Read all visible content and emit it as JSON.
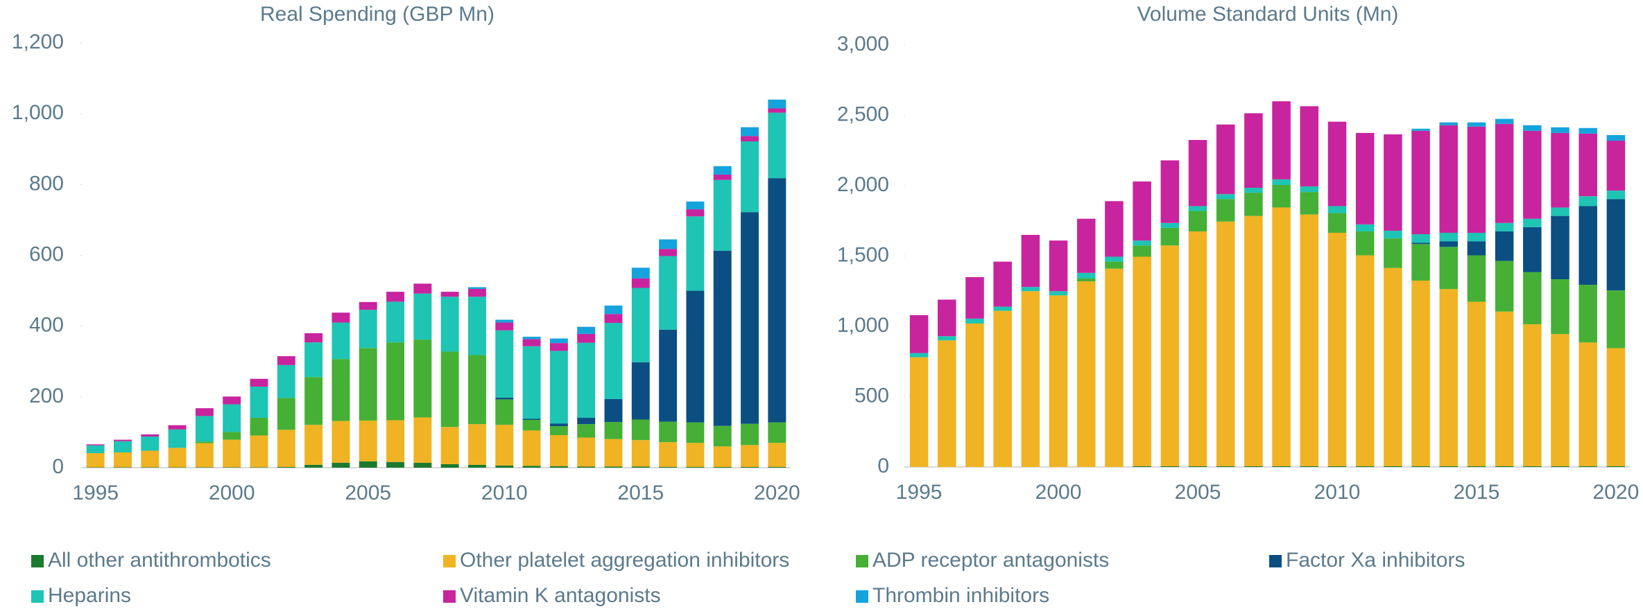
{
  "legend": [
    {
      "name": "All other antithrombotics",
      "color": "#1a7a2e"
    },
    {
      "name": "Other platelet aggregation inhibitors",
      "color": "#f0b323"
    },
    {
      "name": "ADP receptor antagonists",
      "color": "#45b035"
    },
    {
      "name": "Factor Xa inhibitors",
      "color": "#0b4f82"
    },
    {
      "name": "Heparins",
      "color": "#1ec4b4"
    },
    {
      "name": "Vitamin K antagonists",
      "color": "#c8249e"
    },
    {
      "name": "Thrombin inhibitors",
      "color": "#15a3dd"
    }
  ],
  "chart_data": [
    {
      "type": "stacked_bar",
      "title": "Real Spending (GBP Mn)",
      "categories": [
        1995,
        null,
        null,
        null,
        null,
        2000,
        null,
        null,
        null,
        null,
        2005,
        null,
        null,
        null,
        null,
        2010,
        null,
        null,
        null,
        null,
        2015,
        null,
        null,
        null,
        null,
        2020
      ],
      "ylim": [
        0,
        1200
      ],
      "yticks": [
        0,
        200,
        400,
        600,
        800,
        {
          "value": 1000,
          "label": "1,000"
        },
        {
          "value": 1200,
          "label": "1,200"
        }
      ],
      "series": [
        {
          "values": [
            1,
            1,
            1,
            1,
            1,
            1,
            1,
            2,
            8,
            14,
            18,
            16,
            14,
            10,
            8,
            6,
            5,
            4,
            3,
            3,
            3,
            2,
            2,
            2,
            2,
            2
          ]
        },
        {
          "values": [
            40,
            42,
            47,
            55,
            68,
            78,
            90,
            105,
            113,
            118,
            115,
            118,
            128,
            105,
            115,
            115,
            100,
            88,
            82,
            78,
            75,
            70,
            68,
            58,
            62,
            68
          ]
        },
        {
          "values": [
            0,
            0,
            0,
            0,
            5,
            22,
            50,
            90,
            135,
            175,
            205,
            220,
            220,
            213,
            195,
            72,
            30,
            25,
            38,
            48,
            58,
            58,
            58,
            58,
            60,
            58
          ]
        },
        {
          "values": [
            0,
            0,
            0,
            0,
            0,
            0,
            0,
            0,
            0,
            0,
            0,
            0,
            0,
            0,
            0,
            5,
            3,
            8,
            18,
            65,
            162,
            260,
            372,
            495,
            598,
            690
          ]
        },
        {
          "values": [
            22,
            32,
            40,
            52,
            72,
            78,
            88,
            93,
            98,
            103,
            108,
            115,
            130,
            155,
            165,
            190,
            205,
            205,
            212,
            215,
            210,
            208,
            210,
            200,
            200,
            185
          ]
        },
        {
          "values": [
            3,
            4,
            6,
            12,
            22,
            22,
            22,
            25,
            26,
            28,
            22,
            28,
            28,
            14,
            22,
            22,
            20,
            22,
            25,
            25,
            27,
            20,
            20,
            15,
            15,
            12
          ]
        },
        {
          "values": [
            0,
            0,
            0,
            0,
            0,
            0,
            0,
            0,
            0,
            0,
            0,
            0,
            0,
            0,
            5,
            8,
            7,
            13,
            20,
            24,
            30,
            27,
            22,
            24,
            25,
            25
          ]
        }
      ]
    },
    {
      "type": "stacked_bar",
      "title": "Volume Standard Units (Mn)",
      "categories": [
        1995,
        null,
        null,
        null,
        null,
        2000,
        null,
        null,
        null,
        null,
        2005,
        null,
        null,
        null,
        null,
        2010,
        null,
        null,
        null,
        null,
        2015,
        null,
        null,
        null,
        null,
        2020
      ],
      "ylim": [
        0,
        3000
      ],
      "yticks": [
        0,
        500,
        {
          "value": 1000,
          "label": "1,000"
        },
        {
          "value": 1500,
          "label": "1,500"
        },
        {
          "value": 2000,
          "label": "2,000"
        },
        {
          "value": 2500,
          "label": "2,500"
        },
        {
          "value": 3000,
          "label": "3,000"
        }
      ],
      "series": [
        {
          "values": [
            0,
            0,
            0,
            0,
            0,
            0,
            0,
            0,
            5,
            5,
            5,
            5,
            5,
            5,
            5,
            5,
            5,
            5,
            5,
            5,
            5,
            5,
            5,
            5,
            5,
            5
          ]
        },
        {
          "values": [
            780,
            900,
            1020,
            1110,
            1250,
            1220,
            1320,
            1410,
            1490,
            1570,
            1670,
            1740,
            1780,
            1840,
            1790,
            1660,
            1500,
            1410,
            1320,
            1260,
            1170,
            1100,
            1010,
            940,
            880,
            840
          ]
        },
        {
          "values": [
            0,
            0,
            0,
            0,
            0,
            0,
            20,
            50,
            80,
            125,
            145,
            160,
            165,
            160,
            160,
            140,
            170,
            210,
            260,
            300,
            330,
            360,
            370,
            390,
            410,
            410
          ]
        },
        {
          "values": [
            0,
            0,
            0,
            0,
            0,
            0,
            0,
            0,
            0,
            0,
            0,
            0,
            0,
            0,
            0,
            0,
            0,
            0,
            10,
            40,
            100,
            210,
            320,
            450,
            560,
            650
          ]
        },
        {
          "values": [
            30,
            30,
            35,
            30,
            30,
            30,
            40,
            35,
            35,
            35,
            35,
            35,
            35,
            40,
            40,
            50,
            50,
            55,
            60,
            60,
            60,
            60,
            60,
            60,
            70,
            60
          ]
        },
        {
          "values": [
            270,
            260,
            295,
            320,
            370,
            360,
            385,
            395,
            420,
            445,
            470,
            495,
            530,
            555,
            570,
            600,
            650,
            685,
            735,
            765,
            755,
            705,
            625,
            530,
            445,
            355
          ]
        },
        {
          "values": [
            0,
            0,
            0,
            0,
            0,
            0,
            0,
            0,
            0,
            0,
            0,
            0,
            0,
            0,
            0,
            0,
            0,
            0,
            15,
            20,
            30,
            35,
            40,
            40,
            40,
            40
          ]
        }
      ]
    }
  ]
}
